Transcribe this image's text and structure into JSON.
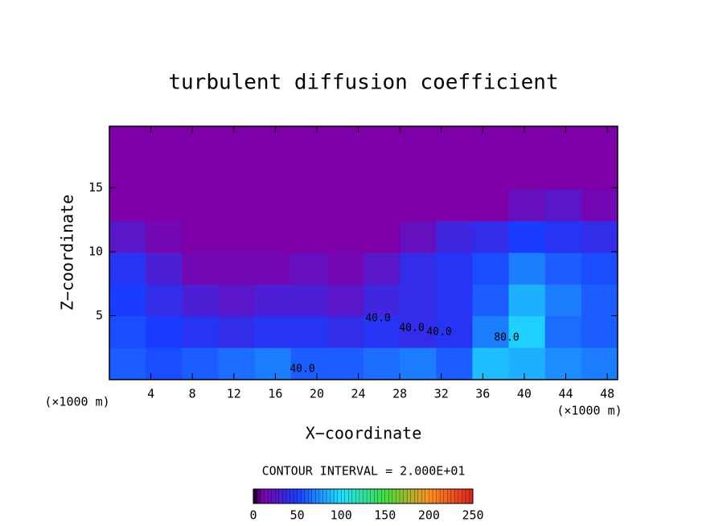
{
  "chart_data": {
    "type": "heatmap",
    "title": "turbulent diffusion coefficient",
    "xlabel": "X−coordinate",
    "ylabel": "Z−coordinate",
    "x_unit_label": "(×1000 m)",
    "x_unit_label_right": "(×1000 m)",
    "xlim": [
      0,
      49
    ],
    "ylim": [
      0,
      19.8
    ],
    "xticks": [
      4,
      8,
      12,
      16,
      20,
      24,
      28,
      32,
      36,
      40,
      44,
      48
    ],
    "yticks": [
      5,
      10,
      15
    ],
    "z": [
      [
        10,
        10,
        10,
        10,
        10,
        10,
        10,
        10,
        10,
        10,
        10,
        10,
        10,
        10
      ],
      [
        10,
        10,
        10,
        10,
        10,
        10,
        10,
        10,
        10,
        10,
        10,
        10,
        10,
        10
      ],
      [
        10,
        10,
        10,
        10,
        10,
        10,
        10,
        10,
        10,
        10,
        10,
        20,
        25,
        15
      ],
      [
        25,
        15,
        10,
        10,
        10,
        10,
        10,
        10,
        20,
        35,
        40,
        50,
        45,
        40
      ],
      [
        45,
        30,
        15,
        15,
        15,
        20,
        15,
        25,
        40,
        45,
        55,
        70,
        60,
        55
      ],
      [
        50,
        40,
        30,
        25,
        30,
        30,
        25,
        35,
        40,
        45,
        60,
        85,
        70,
        60
      ],
      [
        55,
        50,
        45,
        40,
        45,
        45,
        40,
        45,
        40,
        45,
        70,
        95,
        65,
        60
      ],
      [
        60,
        55,
        60,
        65,
        70,
        60,
        60,
        65,
        70,
        60,
        90,
        85,
        75,
        70
      ]
    ],
    "contour_labels": [
      "40.0",
      "40.0",
      "40.0",
      "80.0",
      "40.0"
    ],
    "colorbar_title": "CONTOUR INTERVAL = 2.000E+01",
    "clim": [
      0,
      250
    ],
    "cticks": [
      0,
      50,
      100,
      150,
      200,
      250
    ]
  }
}
